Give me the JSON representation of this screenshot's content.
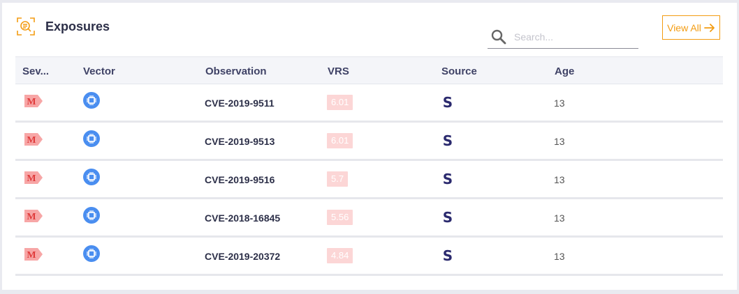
{
  "widget": {
    "title": "Exposures",
    "view_all_label": "View All",
    "search": {
      "placeholder": "Search...",
      "value": ""
    },
    "colors": {
      "accent": "#f39c12",
      "severity_medium": "#f58c8c",
      "vector_blue": "#4a8ef0",
      "vrs_bg": "#fcd6d6",
      "source_navy": "#2b2a6e"
    }
  },
  "table": {
    "headers": [
      "Sev...",
      "Vector",
      "Observation",
      "VRS",
      "Source",
      "Age"
    ],
    "rows": [
      {
        "severity": "M",
        "vector_icon": "chip-icon",
        "observation": "CVE-2019-9511",
        "vrs": "6.01",
        "source": "S",
        "age": "13"
      },
      {
        "severity": "M",
        "vector_icon": "chip-icon",
        "observation": "CVE-2019-9513",
        "vrs": "6.01",
        "source": "S",
        "age": "13"
      },
      {
        "severity": "M",
        "vector_icon": "chip-icon",
        "observation": "CVE-2019-9516",
        "vrs": "5.7",
        "source": "S",
        "age": "13"
      },
      {
        "severity": "M",
        "vector_icon": "chip-icon",
        "observation": "CVE-2018-16845",
        "vrs": "5.56",
        "source": "S",
        "age": "13"
      },
      {
        "severity": "M",
        "vector_icon": "chip-icon",
        "observation": "CVE-2019-20372",
        "vrs": "4.84",
        "source": "S",
        "age": "13"
      }
    ]
  }
}
